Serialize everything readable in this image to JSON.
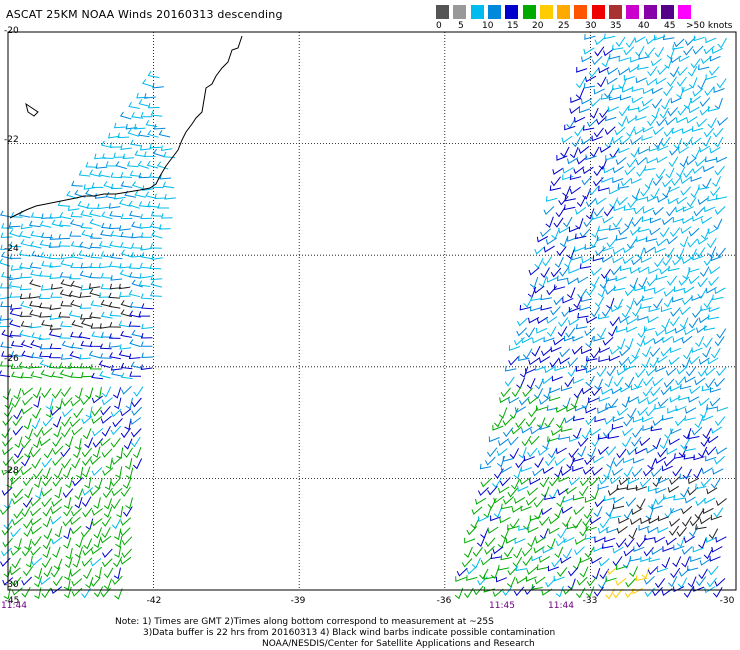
{
  "title": "ASCAT 25KM NOAA Winds 20160313 descending",
  "legend": {
    "colors": [
      "#555555",
      "#999999",
      "#00bbee",
      "#0088dd",
      "#0000cc",
      "#00aa00",
      "#ffcc00",
      "#ffaa00",
      "#ff5500",
      "#ee0000",
      "#a83232",
      "#cc00cc",
      "#8800aa",
      "#550088",
      "#ff00ff"
    ],
    "labels": [
      "0",
      "5",
      "10",
      "15",
      "20",
      "25",
      "30",
      "35",
      "40",
      "45",
      ">50 knots"
    ]
  },
  "axes": {
    "y_labels": [
      "-20",
      "-22",
      "-24",
      "-26",
      "-28",
      "-30"
    ],
    "x_labels": [
      "-45",
      "-42",
      "-39",
      "-36",
      "-33",
      "-30"
    ],
    "time_labels": [
      "11:44",
      "11:45",
      "11:44"
    ]
  },
  "notes": {
    "line1": "Note: 1) Times are GMT 2)Times along bottom correspond to measurement at ~25S",
    "line2": "3)Data buffer is 22 hrs from 20160313 4) Black wind barbs indicate possible contamination",
    "line3": "NOAA/NESDIS/Center for Satellite Applications and Research"
  },
  "chart_data": {
    "type": "map",
    "lat_range": [
      -30,
      -20
    ],
    "lon_range": [
      -45,
      -30
    ],
    "grid": true,
    "swaths": [
      {
        "name": "",
        "time": "11:44",
        "lon_range": [
          -45,
          -42
        ]
      },
      {
        "name": "",
        "time": "11:45",
        "lon_range": [
          -36,
          -30
        ]
      }
    ]
  }
}
